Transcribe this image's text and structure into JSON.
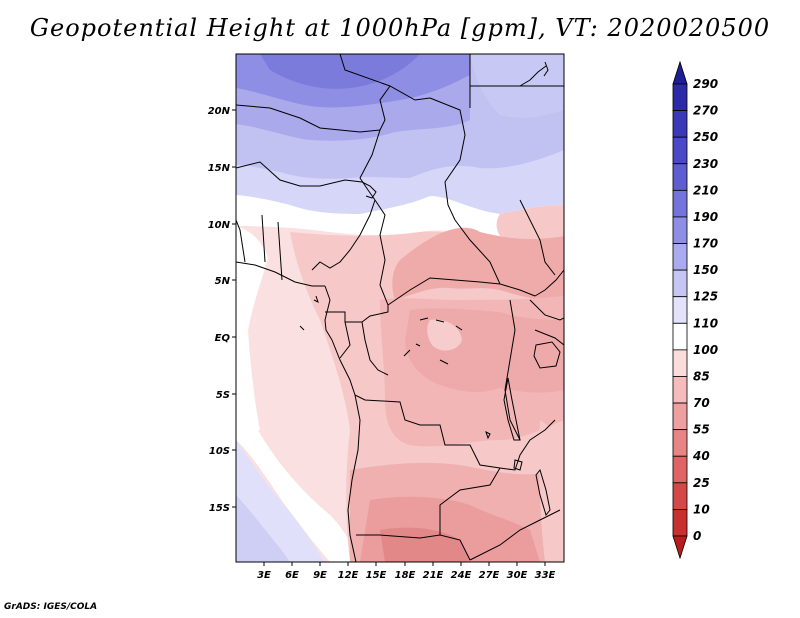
{
  "title": "Geopotential Height at 1000hPa [gpm], VT: 2020020500",
  "credit": "GrADS: IGES/COLA",
  "lat_ticks": [
    "20N",
    "15N",
    "10N",
    "5N",
    "EQ",
    "5S",
    "10S",
    "15S"
  ],
  "lon_ticks": [
    "3E",
    "6E",
    "9E",
    "12E",
    "15E",
    "18E",
    "21E",
    "24E",
    "27E",
    "30E",
    "33E"
  ],
  "colorbar": {
    "labels": [
      "290",
      "270",
      "250",
      "230",
      "210",
      "190",
      "170",
      "150",
      "125",
      "110",
      "100",
      "85",
      "70",
      "55",
      "40",
      "25",
      "10",
      "0"
    ],
    "colors": [
      "#1e1e96",
      "#2b2ba8",
      "#3a3ab8",
      "#4a4ac6",
      "#5e5ed2",
      "#7474dc",
      "#8e8ee6",
      "#aaaaee",
      "#c6c6f4",
      "#e2e2fa",
      "#ffffff",
      "#fadcdc",
      "#f4bcbc",
      "#eea0a0",
      "#e88484",
      "#e06464",
      "#d44848",
      "#c83030",
      "#b81c1c"
    ]
  },
  "field": {
    "variable": "Geopotential Height",
    "level": "1000hPa",
    "units": "gpm",
    "valid_time": "2020020500"
  }
}
